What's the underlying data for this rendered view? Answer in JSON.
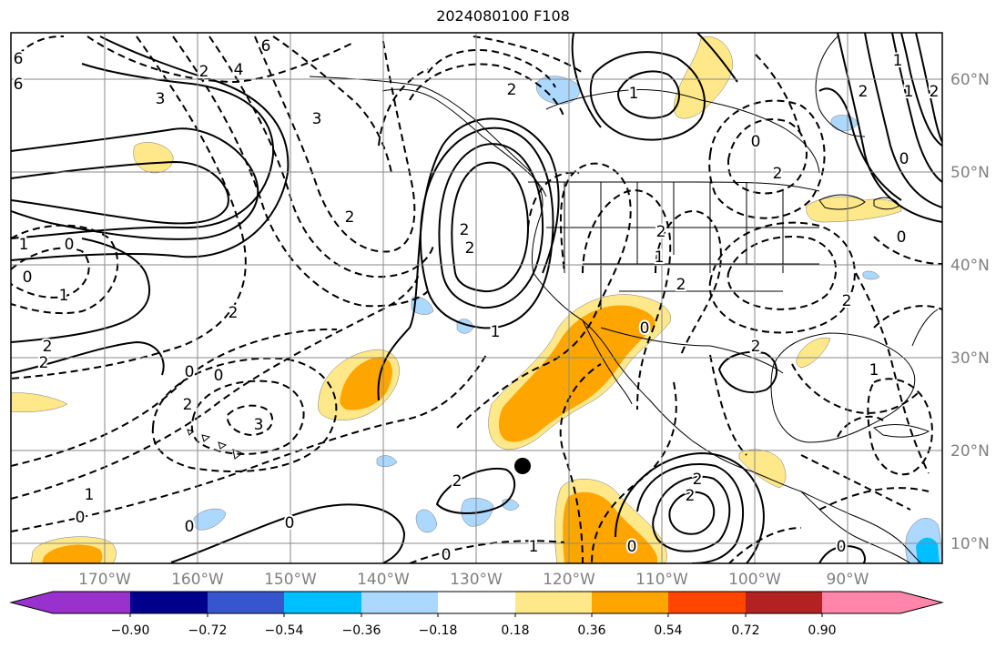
{
  "title": "2024080100 F108",
  "colors": {
    "land": "#000000",
    "grid": "#8a8a8a",
    "contour": "#000000",
    "axis_label": "#808080"
  },
  "lon_labels": [
    "170°W",
    "160°W",
    "150°W",
    "140°W",
    "130°W",
    "120°W",
    "110°W",
    "100°W",
    "90°W"
  ],
  "lat_labels": [
    "60°N",
    "50°N",
    "40°N",
    "30°N",
    "20°N",
    "10°N"
  ],
  "colorbar": {
    "colors": [
      "#9932cc",
      "#00008b",
      "#3755cc",
      "#00bfff",
      "#add8fe",
      "#ffffff",
      "#ffe88a",
      "#ffa500",
      "#ff4500",
      "#b22222",
      "#ff85aa"
    ],
    "tick_labels": [
      "−0.90",
      "−0.72",
      "−0.54",
      "−0.36",
      "−0.18",
      "0.18",
      "0.36",
      "0.54",
      "0.72",
      "0.90"
    ]
  },
  "contour_labels": [
    "6",
    "6",
    "6",
    "4",
    "2",
    "3",
    "3",
    "2",
    "2",
    "2",
    "0",
    "1",
    "0",
    "1",
    "2",
    "2",
    "0",
    "0",
    "2",
    "3",
    "1",
    "0",
    "0",
    "0",
    "0",
    "2",
    "2",
    "1",
    "2",
    "0",
    "2",
    "0",
    "2",
    "1",
    "2",
    "2",
    "2",
    "0",
    "1",
    "2",
    "1",
    "2",
    "2",
    "1",
    "0",
    "0",
    "0",
    "1",
    "1",
    "2"
  ],
  "marker": "storm-position"
}
